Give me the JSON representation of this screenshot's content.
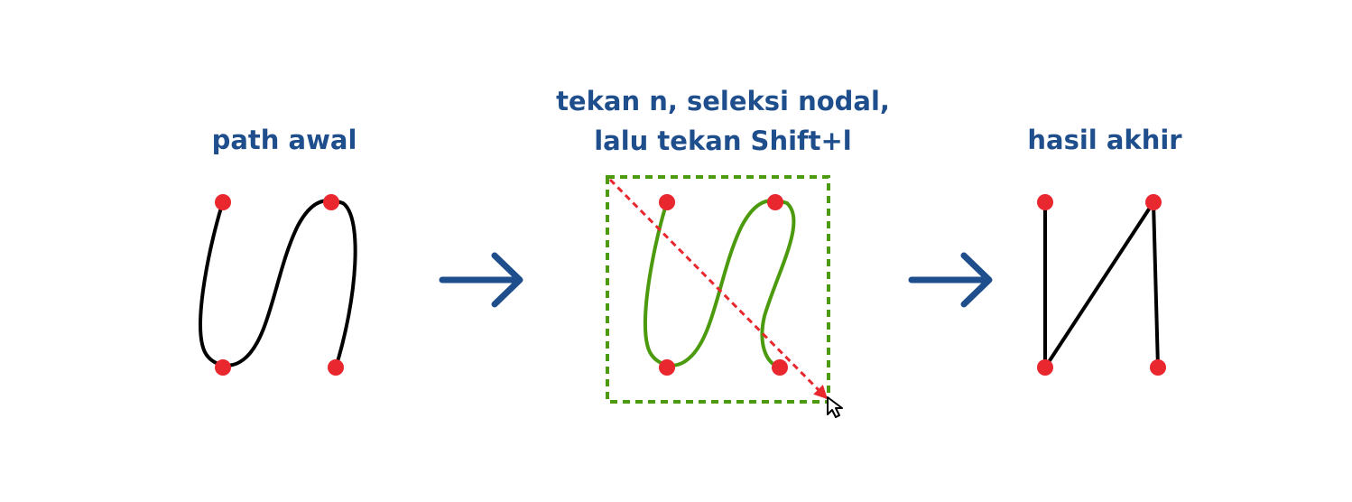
{
  "steps": [
    {
      "title_line1": "path awal"
    },
    {
      "title_line1": "tekan n, seleksi nodal,",
      "title_line2": "lalu tekan Shift+l"
    },
    {
      "title_line1": "hasil akhir"
    }
  ],
  "colors": {
    "title": "#1f4e8c",
    "arrow": "#1f4e8c",
    "node": "#e8272e",
    "path_original": "#000000",
    "path_selected": "#4c9a0e",
    "selection_box": "#4c9a0e",
    "drag_line": "#e8272e",
    "result_path": "#000000"
  },
  "icons": [
    "arrow-right-icon",
    "arrow-right-icon",
    "mouse-cursor-icon"
  ]
}
